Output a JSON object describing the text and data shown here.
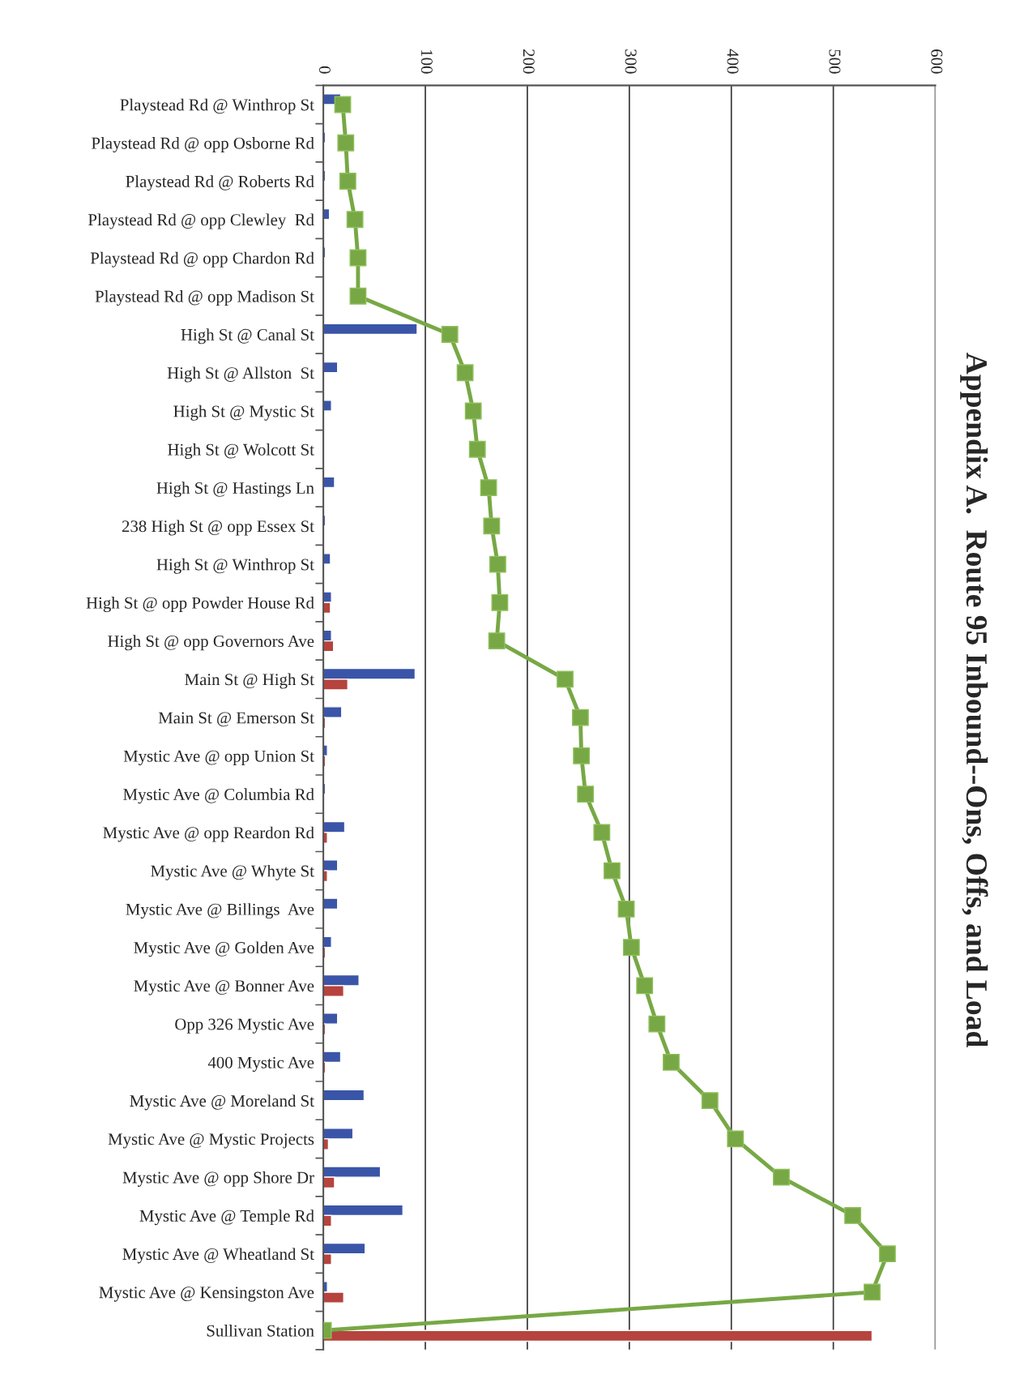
{
  "chart_data": {
    "type": "bar",
    "orientation": "horizontal",
    "title": "Appendix A.  Route 95 Inbound--Ons, Offs, and Load",
    "categories": [
      "Playstead Rd @ Winthrop St",
      "Playstead Rd @ opp Osborne Rd",
      "Playstead Rd @ Roberts Rd",
      "Playstead Rd @ opp Clewley  Rd",
      "Playstead Rd @ opp Chardon Rd",
      "Playstead Rd @ opp Madison St",
      "High St @ Canal St",
      "High St @ Allston  St",
      "High St @ Mystic St",
      "High St @ Wolcott St",
      "High St @ Hastings Ln",
      "238 High St @ opp Essex St",
      "High St @ Winthrop St",
      "High St @ opp Powder House Rd",
      "High St @ opp Governors Ave",
      "Main St @ High St",
      "Main St @ Emerson St",
      "Mystic Ave @ opp Union St",
      "Mystic Ave @ Columbia Rd",
      "Mystic Ave @ opp Reardon Rd",
      "Mystic Ave @ Whyte St",
      "Mystic Ave @ Billings  Ave",
      "Mystic Ave @ Golden Ave",
      "Mystic Ave @ Bonner Ave",
      "Opp 326 Mystic Ave",
      "400 Mystic Ave",
      "Mystic Ave @ Moreland St",
      "Mystic Ave @ Mystic Projects",
      "Mystic Ave @ opp Shore Dr",
      "Mystic Ave @ Temple Rd",
      "Mystic Ave @ Wheatland St",
      "Mystic Ave @ Kensingston Ave",
      "Sullivan Station"
    ],
    "series": [
      {
        "color": "#3a55a8",
        "values": [
          17,
          2,
          2,
          6,
          2,
          null,
          92,
          14,
          8,
          1,
          11,
          2,
          7,
          8,
          8,
          90,
          18,
          4,
          2,
          21,
          14,
          14,
          8,
          35,
          14,
          17,
          40,
          29,
          56,
          78,
          41,
          4,
          null
        ]
      },
      {
        "color": "#b6433d",
        "values": [
          null,
          null,
          null,
          null,
          null,
          null,
          null,
          null,
          null,
          null,
          null,
          null,
          null,
          7,
          10,
          24,
          2,
          2,
          null,
          4,
          4,
          null,
          2,
          20,
          2,
          2,
          null,
          5,
          11,
          8,
          8,
          20,
          538
        ]
      },
      {
        "type": "line",
        "color": "#77a845",
        "marker": "square",
        "values": [
          19,
          22,
          24,
          31,
          34,
          34,
          124,
          139,
          147,
          151,
          162,
          165,
          171,
          173,
          170,
          237,
          252,
          253,
          257,
          273,
          283,
          297,
          302,
          315,
          327,
          341,
          379,
          404,
          449,
          519,
          553,
          538,
          0
        ]
      }
    ],
    "xlim": [
      0,
      600
    ],
    "xticks": [
      0,
      100,
      200,
      300,
      400,
      500,
      600
    ],
    "grid": "x",
    "legend": false
  }
}
